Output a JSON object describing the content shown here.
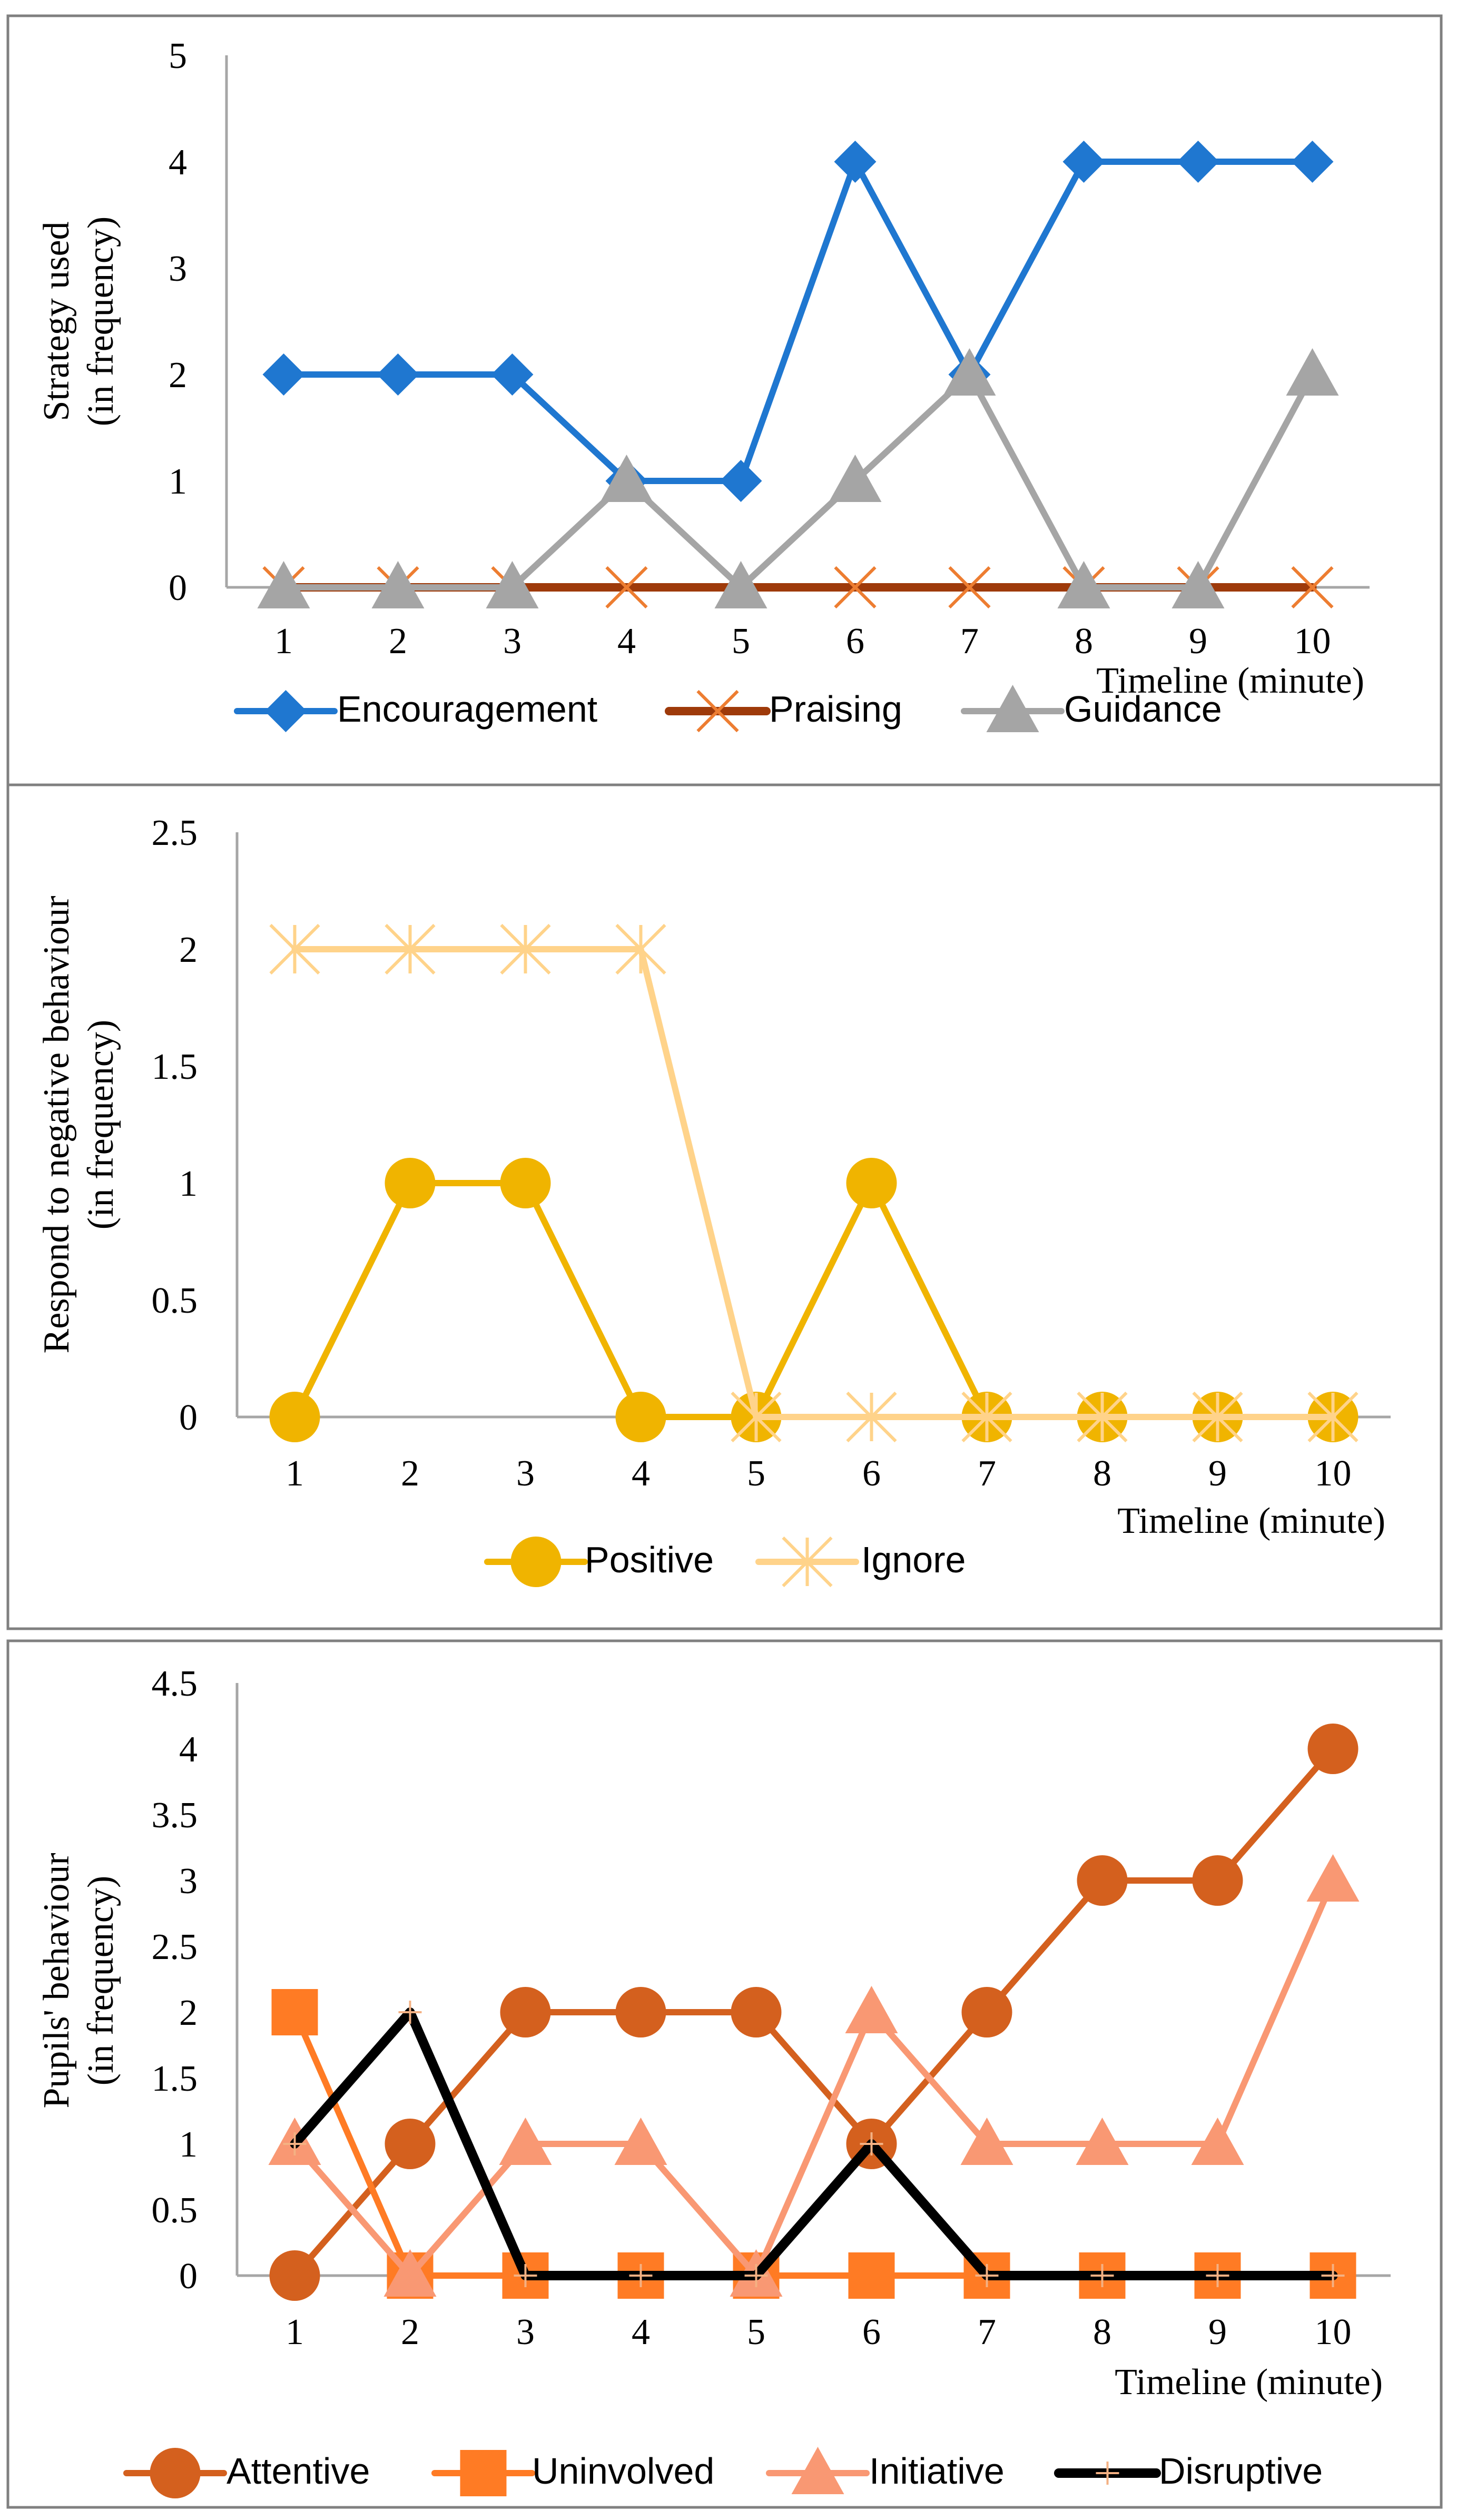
{
  "chart_data": [
    {
      "type": "line",
      "x": [
        1,
        2,
        3,
        4,
        5,
        6,
        7,
        8,
        9,
        10
      ],
      "xlabel": "Timeline (minute)",
      "ylabel_lines": [
        "Strategy used",
        "(in frequency)"
      ],
      "ylim": [
        0,
        5
      ],
      "yticks": [
        0,
        1,
        2,
        3,
        4,
        5
      ],
      "ytick_labels": [
        "0",
        "1",
        "2",
        "3",
        "4",
        "5"
      ],
      "legend_position": "bottom",
      "series": [
        {
          "name": "Encouragement",
          "values": [
            2,
            2,
            2,
            1,
            1,
            4,
            2,
            4,
            4,
            4
          ],
          "color": "#1f77d0",
          "marker": "diamond"
        },
        {
          "name": "Praising",
          "values": [
            0,
            0,
            0,
            0,
            0,
            0,
            0,
            0,
            0,
            0
          ],
          "color": "#9e3a0a",
          "marker": "x",
          "marker_color": "#ed7d31"
        },
        {
          "name": "Guidance",
          "values": [
            0,
            0,
            0,
            1,
            0,
            1,
            2,
            0,
            0,
            2
          ],
          "color": "#a5a5a5",
          "marker": "triangle"
        }
      ]
    },
    {
      "type": "line",
      "x": [
        1,
        2,
        3,
        4,
        5,
        6,
        7,
        8,
        9,
        10
      ],
      "xlabel": "Timeline (minute)",
      "ylabel_lines": [
        "Respond to negative behaviour",
        "(in frequency)"
      ],
      "ylim": [
        0,
        2.5
      ],
      "yticks": [
        0,
        0.5,
        1,
        1.5,
        2,
        2.5
      ],
      "ytick_labels": [
        "0",
        "0.5",
        "1",
        "1.5",
        "2",
        "2.5"
      ],
      "legend_position": "bottom",
      "series": [
        {
          "name": "Positive",
          "values": [
            0,
            1,
            1,
            0,
            0,
            1,
            0,
            0,
            0,
            0
          ],
          "color": "#f0b400",
          "marker": "circle"
        },
        {
          "name": "Ignore",
          "values": [
            2,
            2,
            2,
            2,
            0,
            0,
            0,
            0,
            0,
            0
          ],
          "color": "#ffd38a",
          "marker": "star"
        }
      ]
    },
    {
      "type": "line",
      "x": [
        1,
        2,
        3,
        4,
        5,
        6,
        7,
        8,
        9,
        10
      ],
      "xlabel": "Timeline (minute)",
      "ylabel_lines": [
        "Pupils' behaviour",
        "(in frequency)"
      ],
      "ylim": [
        0,
        4.5
      ],
      "yticks": [
        0,
        0.5,
        1,
        1.5,
        2,
        2.5,
        3,
        3.5,
        4,
        4.5
      ],
      "ytick_labels": [
        "0",
        "0.5",
        "1",
        "1.5",
        "2",
        "2.5",
        "3",
        "3.5",
        "4",
        "4.5"
      ],
      "legend_position": "bottom",
      "series": [
        {
          "name": "Attentive",
          "values": [
            0,
            1,
            2,
            2,
            2,
            1,
            2,
            3,
            3,
            4
          ],
          "color": "#d4601e",
          "marker": "circle"
        },
        {
          "name": "Uninvolved",
          "values": [
            2,
            0,
            0,
            0,
            0,
            0,
            0,
            0,
            0,
            0
          ],
          "color": "#ff7b24",
          "marker": "square"
        },
        {
          "name": "Initiative",
          "values": [
            1,
            0,
            1,
            1,
            0,
            2,
            1,
            1,
            1,
            3
          ],
          "color": "#f99873",
          "marker": "triangle"
        },
        {
          "name": "Disruptive",
          "values": [
            1,
            2,
            0,
            0,
            0,
            1,
            0,
            0,
            0,
            0
          ],
          "color": "#000000",
          "marker": "plus",
          "marker_color": "#f4b183"
        }
      ]
    }
  ]
}
